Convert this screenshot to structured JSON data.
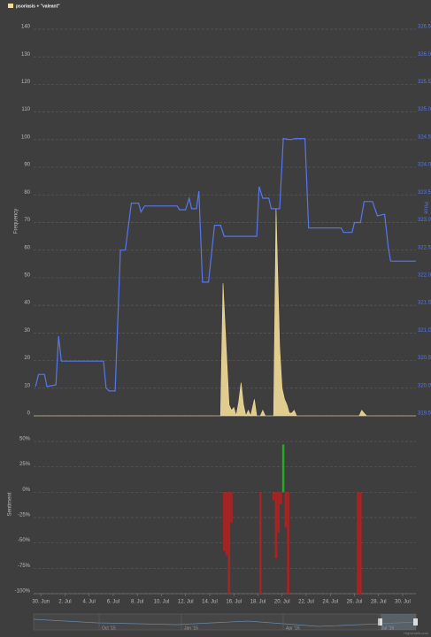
{
  "chart_data": [
    {
      "type": "line",
      "legend": "top-left",
      "ylabel": "Frequency",
      "y2label": "Price",
      "xlim": [
        -0.6,
        31.1
      ],
      "xticks": [
        {
          "value": 0,
          "label": "30. Jun"
        },
        {
          "value": 2,
          "label": "2. Jul"
        },
        {
          "value": 4,
          "label": "4. Jul"
        },
        {
          "value": 6,
          "label": "6. Jul"
        },
        {
          "value": 8,
          "label": "8. Jul"
        },
        {
          "value": 10,
          "label": "10. Jul"
        },
        {
          "value": 12,
          "label": "12. Jul"
        },
        {
          "value": 14,
          "label": "14. Jul"
        },
        {
          "value": 16,
          "label": "16. Jul"
        },
        {
          "value": 18,
          "label": "18. Jul"
        },
        {
          "value": 20,
          "label": "20. Jul"
        },
        {
          "value": 22,
          "label": "22. Jul"
        },
        {
          "value": 24,
          "label": "24. Jul"
        },
        {
          "value": 26,
          "label": "26. Jul"
        },
        {
          "value": 28,
          "label": "28. Jul"
        },
        {
          "value": 30,
          "label": "30. Jul"
        }
      ],
      "ylim": [
        0,
        140
      ],
      "yticks": [
        0,
        10,
        20,
        30,
        40,
        50,
        60,
        70,
        80,
        90,
        100,
        110,
        120,
        130,
        140
      ],
      "y2lim": [
        319.5,
        326.5
      ],
      "y2ticks": [
        {
          "value": 319.5,
          "label": "319.50"
        },
        {
          "value": 320,
          "label": "320.00"
        },
        {
          "value": 320.5,
          "label": "320.50"
        },
        {
          "value": 321,
          "label": "321.00"
        },
        {
          "value": 321.5,
          "label": "321.50"
        },
        {
          "value": 322,
          "label": "322.00"
        },
        {
          "value": 322.5,
          "label": "322.50"
        },
        {
          "value": 323,
          "label": "323.00"
        },
        {
          "value": 323.5,
          "label": "323.50"
        },
        {
          "value": 324,
          "label": "324.00"
        },
        {
          "value": 324.5,
          "label": "324.50"
        },
        {
          "value": 325,
          "label": "325.00"
        },
        {
          "value": 325.5,
          "label": "325.50"
        },
        {
          "value": 326,
          "label": "326.00"
        },
        {
          "value": 326.5,
          "label": "326.50"
        }
      ],
      "grid": true,
      "series": [
        {
          "name": "psoriasis + \"valeant\"",
          "type": "area",
          "color": "#f2dc97",
          "x": [
            -0.6,
            14.9,
            15.1,
            15.4,
            15.6,
            15.8,
            16.0,
            16.2,
            16.4,
            16.6,
            16.8,
            17.0,
            17.2,
            17.4,
            17.7,
            17.9,
            18.2,
            18.4,
            18.6,
            19.3,
            19.5,
            19.8,
            20.0,
            20.2,
            20.4,
            20.6,
            20.8,
            21.0,
            21.2,
            26.4,
            26.6,
            26.8,
            27.0,
            31.1
          ],
          "values": [
            0,
            0,
            48,
            22,
            4,
            2,
            3,
            0,
            5,
            12,
            4,
            0,
            2,
            0,
            6,
            0,
            0,
            2,
            0,
            0,
            75,
            25,
            10,
            6,
            4,
            1,
            1,
            2,
            0,
            0,
            2,
            1,
            0,
            0
          ]
        },
        {
          "type": "line",
          "axis": "y2",
          "color": "#5577ee",
          "x": [
            -0.44,
            -0.2,
            0.3,
            0.5,
            1.25,
            1.47,
            1.7,
            5.2,
            5.4,
            5.65,
            6.16,
            6.6,
            7.0,
            7.5,
            8.1,
            8.3,
            8.6,
            11.3,
            11.5,
            12.0,
            12.3,
            12.5,
            12.9,
            13.1,
            13.4,
            13.9,
            14.4,
            14.9,
            15.2,
            17.9,
            18.1,
            18.4,
            18.9,
            19.1,
            19.8,
            20.1,
            20.7,
            21.1,
            21.9,
            22.2,
            24.9,
            25.1,
            25.8,
            26.0,
            26.5,
            26.8,
            27.5,
            27.9,
            28.5,
            28.8,
            29.0,
            31.1
          ],
          "values": [
            320.03,
            320.25,
            320.25,
            320.03,
            320.06,
            320.94,
            320.49,
            320.49,
            320.01,
            319.95,
            319.95,
            322.5,
            322.5,
            323.35,
            323.35,
            323.19,
            323.3,
            323.3,
            323.23,
            323.23,
            323.44,
            323.25,
            323.25,
            323.57,
            321.92,
            321.92,
            322.95,
            322.95,
            322.75,
            322.75,
            323.65,
            323.44,
            323.44,
            323.25,
            323.25,
            324.52,
            324.5,
            324.52,
            324.52,
            322.9,
            322.9,
            322.82,
            322.82,
            323.0,
            323.0,
            323.38,
            323.38,
            323.12,
            323.15,
            322.55,
            322.3,
            322.3
          ]
        }
      ]
    },
    {
      "type": "bar",
      "ylabel": "Sentiment",
      "xlim": [
        -0.6,
        31.1
      ],
      "ylim": [
        -100,
        50
      ],
      "yticks": [
        {
          "value": -100,
          "label": "-100%"
        },
        {
          "value": -75,
          "label": "-75%"
        },
        {
          "value": -50,
          "label": "-50%"
        },
        {
          "value": -25,
          "label": "-25%"
        },
        {
          "value": 0,
          "label": "0%"
        },
        {
          "value": 25,
          "label": "25%"
        },
        {
          "value": 50,
          "label": "50%"
        }
      ],
      "grid": true,
      "positive_color": "#22aa22",
      "negative_color": "#aa2222",
      "x": [
        15.2,
        15.4,
        15.6,
        15.8,
        18.2,
        19.3,
        19.5,
        19.7,
        19.9,
        20.1,
        20.3,
        20.5,
        26.3,
        26.5
      ],
      "values": [
        -58,
        -62,
        -100,
        -30,
        -100,
        -8,
        -65,
        -40,
        -12,
        47,
        -35,
        -100,
        -100,
        -100
      ],
      "navigator_labels": [
        "Oct '15",
        "Jan '16",
        "Apr '16",
        "Jul '16"
      ],
      "credits": "Highcharts.com"
    }
  ]
}
